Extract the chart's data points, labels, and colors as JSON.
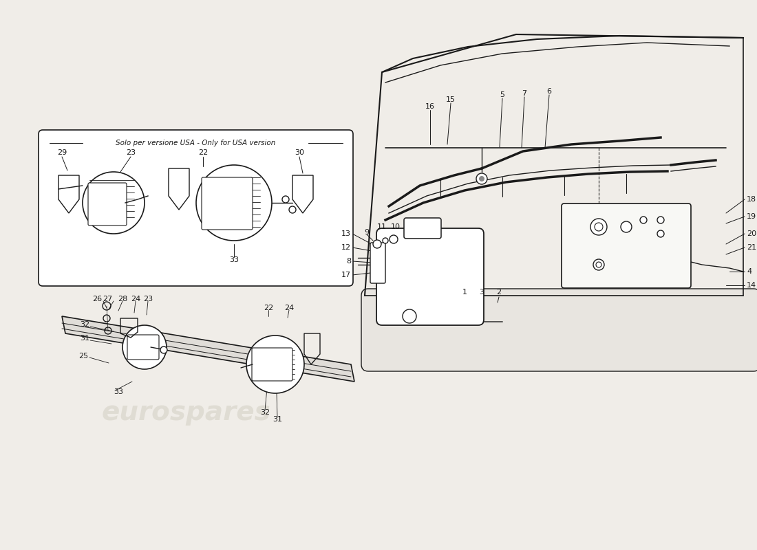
{
  "bg_color": "#f5f5f0",
  "line_color": "#1a1a1a",
  "watermark_color": "#d0ccc0",
  "watermark_text": "eurospares",
  "usa_label": "Solo per versione USA - Only for USA version",
  "fig_width": 11.0,
  "fig_height": 8.0,
  "dpi": 100
}
